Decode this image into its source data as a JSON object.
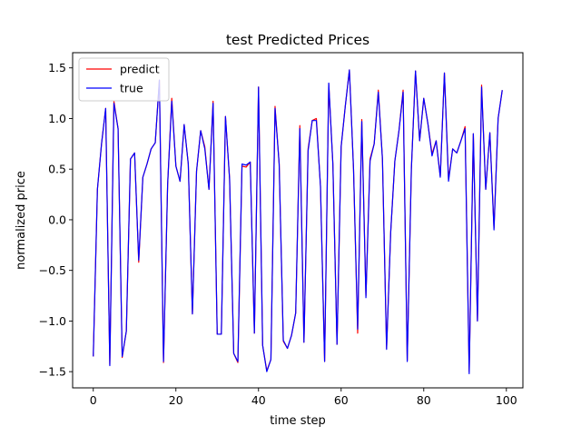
{
  "chart_data": {
    "type": "line",
    "title": "test Predicted Prices",
    "xlabel": "time step",
    "ylabel": "normalized price",
    "xlim": [
      -5,
      104
    ],
    "ylim": [
      -1.66,
      1.65
    ],
    "xticks": [
      0,
      20,
      40,
      60,
      80,
      100
    ],
    "xtick_labels": [
      "0",
      "20",
      "40",
      "60",
      "80",
      "100"
    ],
    "yticks": [
      -1.5,
      -1.0,
      -0.5,
      0.0,
      0.5,
      1.0,
      1.5
    ],
    "ytick_labels": [
      "−1.5",
      "−1.0",
      "−0.5",
      "0.0",
      "0.5",
      "1.0",
      "1.5"
    ],
    "grid": false,
    "legend_position": "top-left",
    "x": [
      0,
      1,
      2,
      3,
      4,
      5,
      6,
      7,
      8,
      9,
      10,
      11,
      12,
      13,
      14,
      15,
      16,
      17,
      18,
      19,
      20,
      21,
      22,
      23,
      24,
      25,
      26,
      27,
      28,
      29,
      30,
      31,
      32,
      33,
      34,
      35,
      36,
      37,
      38,
      39,
      40,
      41,
      42,
      43,
      44,
      45,
      46,
      47,
      48,
      49,
      50,
      51,
      52,
      53,
      54,
      55,
      56,
      57,
      58,
      59,
      60,
      61,
      62,
      63,
      64,
      65,
      66,
      67,
      68,
      69,
      70,
      71,
      72,
      73,
      74,
      75,
      76,
      77,
      78,
      79,
      80,
      81,
      82,
      83,
      84,
      85,
      86,
      87,
      88,
      89,
      90,
      91,
      92,
      93,
      94,
      95,
      96,
      97,
      98,
      99
    ],
    "series": [
      {
        "name": "predict",
        "color": "#ff0000",
        "values": [
          -1.35,
          0.3,
          0.75,
          1.1,
          -1.43,
          1.17,
          0.9,
          -1.36,
          -1.1,
          0.6,
          0.66,
          -0.42,
          0.42,
          0.55,
          0.7,
          0.76,
          1.38,
          -1.41,
          0.35,
          1.2,
          0.53,
          0.38,
          0.94,
          0.55,
          -0.93,
          0.48,
          0.88,
          0.72,
          0.3,
          1.17,
          -1.13,
          -1.13,
          1.02,
          0.4,
          -1.32,
          -1.41,
          0.53,
          0.52,
          0.57,
          -1.12,
          1.31,
          -1.24,
          -1.49,
          -1.38,
          1.12,
          0.55,
          -1.2,
          -1.27,
          -1.14,
          -0.92,
          0.93,
          -1.21,
          0.7,
          0.98,
          1.0,
          0.33,
          -1.4,
          1.34,
          0.55,
          -1.23,
          0.72,
          1.12,
          1.48,
          0.5,
          -1.12,
          0.99,
          -0.75,
          0.6,
          0.75,
          1.28,
          0.6,
          -1.27,
          -0.12,
          0.58,
          0.88,
          1.28,
          -1.39,
          0.5,
          1.47,
          0.78,
          1.2,
          0.95,
          0.65,
          0.78,
          0.43,
          1.45,
          0.4,
          0.7,
          0.66,
          0.78,
          0.92,
          -1.5,
          0.85,
          -1.0,
          1.33,
          0.3,
          0.86,
          -0.08,
          1.0,
          1.28
        ]
      },
      {
        "name": "true",
        "color": "#0000ff",
        "values": [
          -1.35,
          0.3,
          0.75,
          1.1,
          -1.44,
          1.15,
          0.9,
          -1.35,
          -1.1,
          0.6,
          0.66,
          -0.4,
          0.42,
          0.55,
          0.7,
          0.76,
          1.38,
          -1.4,
          0.35,
          1.17,
          0.53,
          0.38,
          0.94,
          0.55,
          -0.93,
          0.48,
          0.88,
          0.7,
          0.3,
          1.15,
          -1.13,
          -1.13,
          1.02,
          0.4,
          -1.32,
          -1.4,
          0.55,
          0.54,
          0.57,
          -1.12,
          1.31,
          -1.24,
          -1.5,
          -1.38,
          1.1,
          0.55,
          -1.19,
          -1.27,
          -1.14,
          -0.92,
          0.9,
          -1.21,
          0.68,
          0.98,
          0.98,
          0.33,
          -1.4,
          1.35,
          0.55,
          -1.23,
          0.72,
          1.12,
          1.48,
          0.5,
          -1.08,
          0.97,
          -0.77,
          0.58,
          0.75,
          1.26,
          0.6,
          -1.28,
          -0.12,
          0.58,
          0.88,
          1.26,
          -1.4,
          0.5,
          1.47,
          0.78,
          1.2,
          0.95,
          0.63,
          0.78,
          0.42,
          1.45,
          0.38,
          0.7,
          0.66,
          0.78,
          0.9,
          -1.52,
          0.85,
          -1.0,
          1.31,
          0.3,
          0.86,
          -0.1,
          1.0,
          1.28
        ]
      }
    ]
  }
}
